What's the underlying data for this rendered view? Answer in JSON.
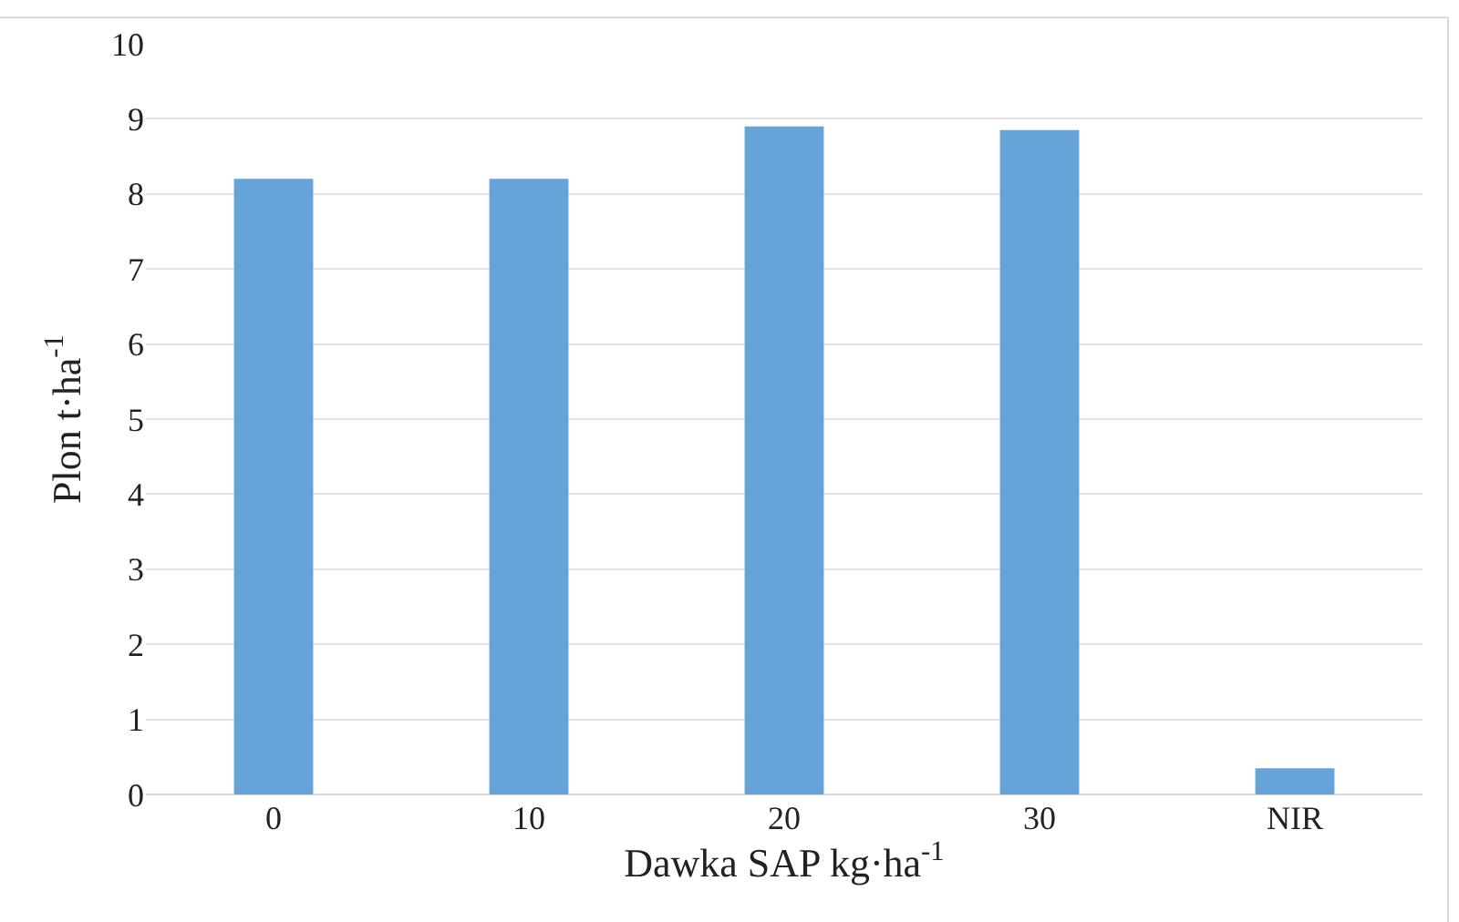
{
  "chart_data": {
    "type": "bar",
    "xlabel": "Dawka SAP kg·ha$^{-1}$",
    "ylabel": "Plon t·ha$^{-1}$",
    "categories": [
      "0",
      "10",
      "20",
      "30",
      "NIR"
    ],
    "series": [
      {
        "color": "#66a3d8",
        "values": [
          8.2,
          8.2,
          8.9,
          8.85,
          0.35
        ]
      }
    ],
    "ylim": [
      0,
      10
    ],
    "yticks": [
      0,
      1,
      2,
      3,
      4,
      5,
      6,
      7,
      8,
      9,
      10
    ],
    "grid": "y"
  }
}
